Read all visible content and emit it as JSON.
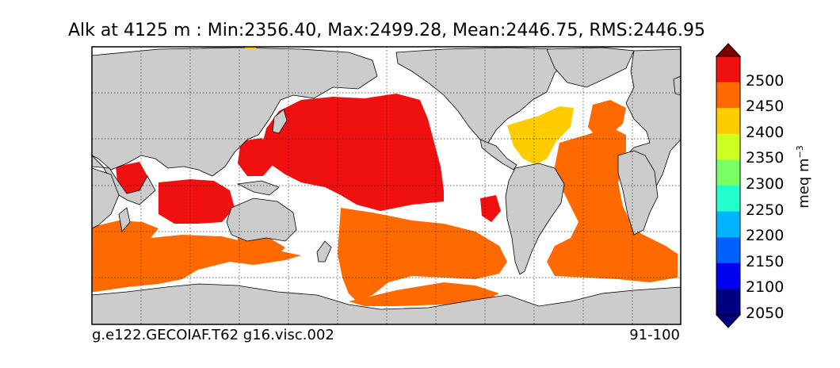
{
  "title": "Alk at 4125 m : Min:2356.40, Max:2499.28, Mean:2446.75, RMS:2446.95",
  "footer": {
    "case_name": "g.e122.GECOIAF.T62 g16.visc.002",
    "years": "91-100"
  },
  "colorbar": {
    "unit_label": "meq m",
    "unit_exponent": "−3",
    "ticks": [
      "2500",
      "2450",
      "2400",
      "2350",
      "2300",
      "2250",
      "2200",
      "2150",
      "2100",
      "2050"
    ],
    "levels": [
      {
        "range": "above 2500",
        "color": "#000080"
      },
      {
        "range": "2000-2050",
        "color": "#000080"
      },
      {
        "range": "2050-2100",
        "color": "#0000ee"
      },
      {
        "range": "2100-2150",
        "color": "#0060ff"
      },
      {
        "range": "2150-2200",
        "color": "#00b4ff"
      },
      {
        "range": "2200-2250",
        "color": "#22ffcc"
      },
      {
        "range": "2250-2300",
        "color": "#7aff66"
      },
      {
        "range": "2300-2350",
        "color": "#ccff22"
      },
      {
        "range": "2350-2400",
        "color": "#ffcc00"
      },
      {
        "range": "2400-2450",
        "color": "#ff6a00"
      },
      {
        "range": "2450-2500",
        "color": "#f01010"
      },
      {
        "range": "over 2500",
        "color": "#800000"
      }
    ]
  },
  "map": {
    "land_color": "#cccccc",
    "ocean_missing_color": "#ffffff",
    "grid": "dotted",
    "projection": "cylindrical, centered on Pacific"
  }
}
